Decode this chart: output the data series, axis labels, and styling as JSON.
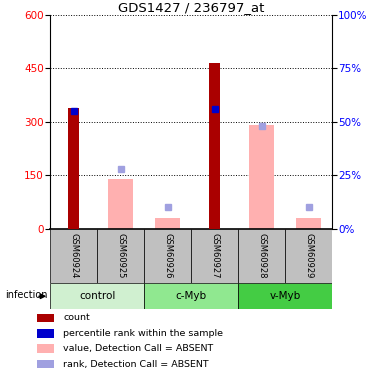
{
  "title": "GDS1427 / 236797_at",
  "samples": [
    "GSM60924",
    "GSM60925",
    "GSM60926",
    "GSM60927",
    "GSM60928",
    "GSM60929"
  ],
  "count_values": [
    340,
    0,
    0,
    465,
    0,
    0
  ],
  "percentile_values": [
    55,
    0,
    0,
    56,
    0,
    0
  ],
  "absent_value": [
    0,
    140,
    30,
    0,
    290,
    30
  ],
  "absent_rank": [
    0,
    28,
    10,
    0,
    48,
    10
  ],
  "ylim_left": [
    0,
    600
  ],
  "ylim_right": [
    0,
    100
  ],
  "yticks_left": [
    0,
    150,
    300,
    450,
    600
  ],
  "yticks_right": [
    0,
    25,
    50,
    75,
    100
  ],
  "groups": [
    {
      "label": "control",
      "indices": [
        0,
        1
      ],
      "color": "#d0f0d0"
    },
    {
      "label": "c-Myb",
      "indices": [
        2,
        3
      ],
      "color": "#90e890"
    },
    {
      "label": "v-Myb",
      "indices": [
        4,
        5
      ],
      "color": "#44cc44"
    }
  ],
  "group_factor": "infection",
  "bar_width": 0.55,
  "red_bar_width": 0.25,
  "count_color": "#aa0000",
  "percentile_color": "#0000cc",
  "absent_value_color": "#ffb0b0",
  "absent_rank_color": "#a0a0e0",
  "bg_sample_row": "#c0c0c0",
  "legend_items": [
    {
      "label": "count",
      "color": "#aa0000"
    },
    {
      "label": "percentile rank within the sample",
      "color": "#0000cc"
    },
    {
      "label": "value, Detection Call = ABSENT",
      "color": "#ffb0b0"
    },
    {
      "label": "rank, Detection Call = ABSENT",
      "color": "#a0a0e0"
    }
  ]
}
